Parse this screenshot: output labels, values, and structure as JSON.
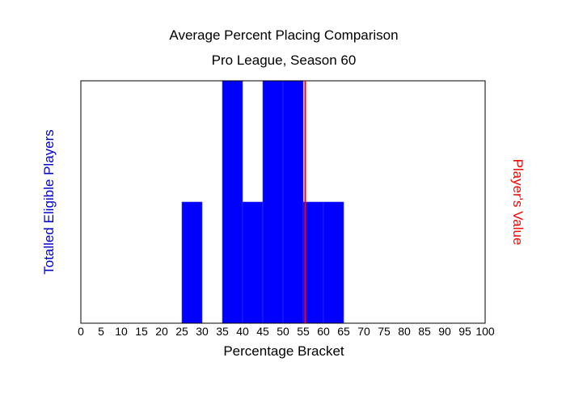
{
  "chart_data": {
    "type": "bar",
    "title": "Average Percent Placing Comparison",
    "subtitle": "Pro League, Season 60",
    "xlabel": "Percentage Bracket",
    "ylabel_left": "Totalled Eligible Players",
    "ylabel_right": "Player's Value",
    "xlim": [
      0,
      100
    ],
    "ylim": [
      0,
      2
    ],
    "xticks": [
      "0",
      "5",
      "10",
      "15",
      "20",
      "25",
      "30",
      "35",
      "40",
      "45",
      "50",
      "55",
      "60",
      "65",
      "70",
      "75",
      "80",
      "85",
      "90",
      "95",
      "100"
    ],
    "bin_width": 5,
    "bins": [
      {
        "start": 25,
        "count": 1
      },
      {
        "start": 35,
        "count": 2
      },
      {
        "start": 40,
        "count": 1
      },
      {
        "start": 45,
        "count": 2
      },
      {
        "start": 50,
        "count": 2
      },
      {
        "start": 55,
        "count": 1
      },
      {
        "start": 60,
        "count": 1
      }
    ],
    "player_value": 55.5,
    "grid": false,
    "colors": {
      "bar": "#0000ff",
      "player_line": "#ff0000",
      "left_label": "#0000cc",
      "right_label": "#ff0000"
    }
  }
}
